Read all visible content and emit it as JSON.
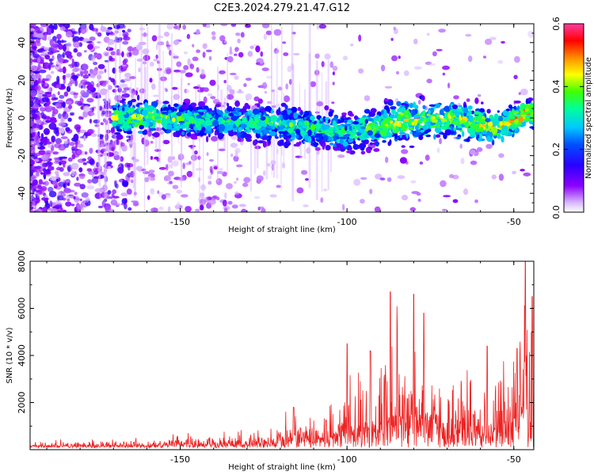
{
  "title": "C2E3.2024.279.21.47.G12",
  "chart_data": [
    {
      "type": "heatmap",
      "xlabel": "Height of straight line (km)",
      "ylabel": "Frequency (Hz)",
      "xlim": [
        -195,
        -44
      ],
      "ylim": [
        -50,
        50
      ],
      "xticks": [
        -150,
        -100,
        -50
      ],
      "xtick_labels": [
        "-150",
        "-100",
        "-50"
      ],
      "yticks": [
        -40,
        -20,
        0,
        20,
        40
      ],
      "ytick_labels": [
        "-40",
        "-20",
        "0",
        "20",
        "40"
      ],
      "colorbar": {
        "label": "Normalized spectral amplitude",
        "range": [
          0.0,
          0.6
        ],
        "ticks": [
          0.0,
          0.2,
          0.4,
          0.6
        ],
        "tick_labels": [
          "0.0",
          "0.2",
          "0.4",
          "0.6"
        ],
        "colormap": [
          "#ffffff",
          "#d9b8ff",
          "#8c00ff",
          "#0000ff",
          "#00c8ff",
          "#00ff9a",
          "#40ff00",
          "#ffff00",
          "#ff8c00",
          "#ff0000",
          "#ff3ca0"
        ]
      },
      "ridge": [
        {
          "x": -160,
          "center": 0,
          "width": 12,
          "level": 0.3
        },
        {
          "x": -140,
          "center": -2,
          "width": 12,
          "level": 0.25
        },
        {
          "x": -120,
          "center": -3,
          "width": 14,
          "level": 0.26
        },
        {
          "x": -100,
          "center": -8,
          "width": 14,
          "level": 0.25
        },
        {
          "x": -85,
          "center": -2,
          "width": 16,
          "level": 0.32
        },
        {
          "x": -70,
          "center": 0,
          "width": 14,
          "level": 0.3
        },
        {
          "x": -55,
          "center": -5,
          "width": 12,
          "level": 0.33
        },
        {
          "x": -47,
          "center": 2,
          "width": 10,
          "level": 0.38
        }
      ]
    },
    {
      "type": "line",
      "xlabel": "Height of straight line (km)",
      "ylabel": "SNR (10 * v/v)",
      "xlim": [
        -195,
        -44
      ],
      "ylim": [
        0,
        8000
      ],
      "xticks": [
        -150,
        -100,
        -50
      ],
      "xtick_labels": [
        "-150",
        "-100",
        "-50"
      ],
      "yticks": [
        2000,
        4000,
        6000,
        8000
      ],
      "ytick_labels": [
        "2000",
        "4000",
        "6000",
        "8000"
      ],
      "color": "#ee2222",
      "envelope": [
        {
          "x": -195,
          "y": 300
        },
        {
          "x": -155,
          "y": 400
        },
        {
          "x": -150,
          "y": 800
        },
        {
          "x": -140,
          "y": 600
        },
        {
          "x": -125,
          "y": 700
        },
        {
          "x": -115,
          "y": 1800
        },
        {
          "x": -108,
          "y": 1600
        },
        {
          "x": -100,
          "y": 3000
        },
        {
          "x": -90,
          "y": 3800
        },
        {
          "x": -86,
          "y": 5500
        },
        {
          "x": -82,
          "y": 3500
        },
        {
          "x": -78,
          "y": 5200
        },
        {
          "x": -72,
          "y": 3000
        },
        {
          "x": -65,
          "y": 3400
        },
        {
          "x": -60,
          "y": 2200
        },
        {
          "x": -55,
          "y": 3200
        },
        {
          "x": -50,
          "y": 4200
        },
        {
          "x": -47,
          "y": 7500
        },
        {
          "x": -44,
          "y": 5000
        }
      ],
      "peaks": [
        {
          "x": -116,
          "y": 1800
        },
        {
          "x": -100,
          "y": 4500
        },
        {
          "x": -93,
          "y": 4200
        },
        {
          "x": -87,
          "y": 6700
        },
        {
          "x": -85,
          "y": 5200
        },
        {
          "x": -80,
          "y": 6600
        },
        {
          "x": -77,
          "y": 5800
        },
        {
          "x": -58,
          "y": 4400
        },
        {
          "x": -49,
          "y": 4300
        },
        {
          "x": -46.5,
          "y": 8000
        },
        {
          "x": -44.5,
          "y": 6500
        }
      ]
    }
  ]
}
